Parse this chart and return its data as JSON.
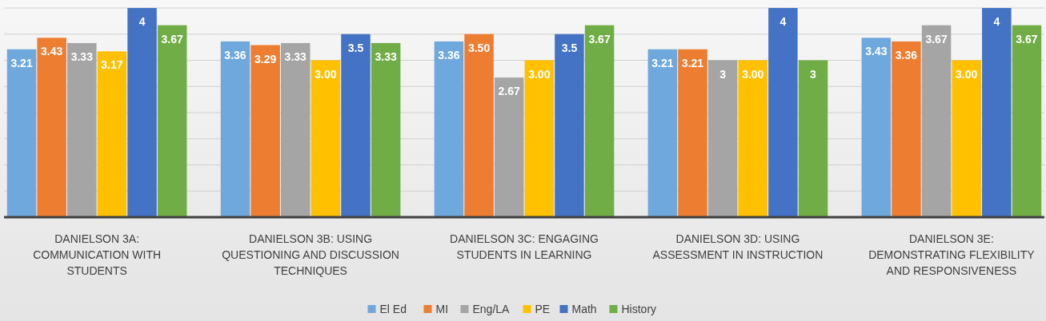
{
  "chart_data": {
    "type": "bar",
    "categories": [
      "DANIELSON 3A: COMMUNICATION WITH STUDENTS",
      "DANIELSON 3B: USING QUESTIONING AND DISCUSSION TECHNIQUES",
      "DANIELSON 3C: ENGAGING STUDENTS IN LEARNING",
      "DANIELSON 3D: USING ASSESSMENT IN INSTRUCTION",
      "DANIELSON 3E: DEMONSTRATING FLEXIBILITY AND RESPONSIVENESS"
    ],
    "series": [
      {
        "name": "El Ed",
        "color": "#6fa8dc",
        "values": [
          3.21,
          3.36,
          3.36,
          3.21,
          3.43
        ],
        "value_labels": [
          "3.21",
          "3.36",
          "3.36",
          "3.21",
          "3.43"
        ]
      },
      {
        "name": "MI",
        "color": "#ed7d31",
        "values": [
          3.43,
          3.29,
          3.5,
          3.21,
          3.36
        ],
        "value_labels": [
          "3.43",
          "3.29",
          "3.50",
          "3.21",
          "3.36"
        ]
      },
      {
        "name": "Eng/LA",
        "color": "#a5a5a5",
        "values": [
          3.33,
          3.33,
          2.67,
          3,
          3.67
        ],
        "value_labels": [
          "3.33",
          "3.33",
          "2.67",
          "3",
          "3.67"
        ]
      },
      {
        "name": "PE",
        "color": "#ffc000",
        "values": [
          3.17,
          3,
          3,
          3,
          3
        ],
        "value_labels": [
          "3.17",
          "3.00",
          "3.00",
          "3.00",
          "3.00"
        ]
      },
      {
        "name": "Math",
        "color": "#4472c4",
        "values": [
          4,
          3.5,
          3.5,
          4,
          4
        ],
        "value_labels": [
          "4",
          "3.5",
          "3.5",
          "4",
          "4"
        ]
      },
      {
        "name": "History",
        "color": "#70ad47",
        "values": [
          3.67,
          3.33,
          3.67,
          3,
          3.67
        ],
        "value_labels": [
          "3.67",
          "3.33",
          "3.67",
          "3",
          "3.67"
        ]
      }
    ],
    "ylim": [
      0,
      4
    ],
    "yticks": [
      {
        "value": 0,
        "label": null
      },
      {
        "value": 0.5,
        "label": null
      },
      {
        "value": 1,
        "label": null
      },
      {
        "value": 1.5,
        "label": null
      },
      {
        "value": 2,
        "label": null
      },
      {
        "value": 2.5,
        "label": null
      },
      {
        "value": 3,
        "label": null
      },
      {
        "value": 3.5,
        "label": null
      },
      {
        "value": 4,
        "label": null
      }
    ],
    "grid": "y",
    "legend": "bottom"
  }
}
